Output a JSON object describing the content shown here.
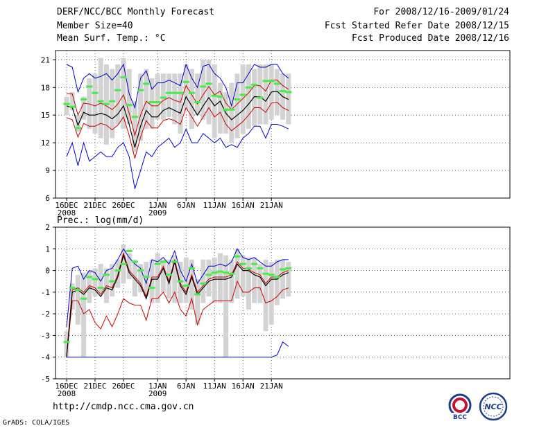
{
  "header": {
    "title": "DERF/NCC/BCC Monthly Forecast",
    "member_size": "Member Size=40",
    "variable1": "Mean Surf. Temp.: °C",
    "period": "For 2008/12/16-2009/01/24",
    "started": "Fcst Started Refer Date 2008/12/15",
    "produced": "Fcst Produced Date 2008/12/16"
  },
  "footer": {
    "url": "http://cmdp.ncc.cma.gov.cn",
    "grads": "GrADS: COLA/IGES",
    "logo1_text": "BCC",
    "logo2_text": "NCC"
  },
  "colors": {
    "bar": "#d3d3d3",
    "median": "#44ee44",
    "envelope": "#0000cc",
    "spread": "#cc0000",
    "mean": "#000000",
    "grid": "#000000"
  },
  "chart_data": [
    {
      "type": "line",
      "title": "Mean Surf. Temp.: °C",
      "x_day_index": [
        0,
        1,
        2,
        3,
        4,
        5,
        6,
        7,
        8,
        9,
        10,
        11,
        12,
        13,
        14,
        15,
        16,
        17,
        18,
        19,
        20,
        21,
        22,
        23,
        24,
        25,
        26,
        27,
        28,
        29,
        30,
        31,
        32,
        33,
        34,
        35,
        36,
        37,
        38,
        39
      ],
      "x_tick_labels": [
        {
          "label": "16DEC",
          "sub": "2008",
          "index": 0
        },
        {
          "label": "21DEC",
          "sub": "",
          "index": 5
        },
        {
          "label": "26DEC",
          "sub": "",
          "index": 10
        },
        {
          "label": "1JAN",
          "sub": "2009",
          "index": 16
        },
        {
          "label": "6JAN",
          "sub": "",
          "index": 21
        },
        {
          "label": "11JAN",
          "sub": "",
          "index": 26
        },
        {
          "label": "16JAN",
          "sub": "",
          "index": 31
        },
        {
          "label": "21JAN",
          "sub": "",
          "index": 36
        }
      ],
      "ylim": [
        6,
        22
      ],
      "yticks": [
        6,
        9,
        12,
        15,
        18,
        21
      ],
      "bars_low": [
        15.0,
        15.5,
        13.2,
        14.5,
        13.5,
        13.0,
        12.5,
        11.8,
        12.5,
        14.0,
        13.5,
        14.0,
        11.0,
        12.2,
        13.5,
        13.5,
        14.5,
        14.5,
        14.8,
        14.0,
        13.0,
        15.5,
        13.5,
        15.0,
        14.5,
        14.0,
        12.5,
        13.0,
        13.0,
        12.0,
        12.5,
        13.0,
        13.5,
        13.8,
        14.0,
        14.0,
        14.5,
        15.0,
        14.5,
        14.0
      ],
      "bars_high": [
        17.0,
        17.5,
        15.0,
        17.0,
        19.0,
        19.5,
        21.2,
        20.5,
        20.0,
        20.5,
        21.2,
        20.0,
        16.5,
        19.5,
        20.0,
        19.0,
        19.5,
        19.5,
        19.5,
        19.5,
        19.5,
        20.5,
        20.0,
        19.5,
        21.0,
        21.0,
        20.5,
        18.5,
        17.5,
        18.5,
        19.5,
        20.5,
        20.5,
        20.0,
        20.5,
        20.5,
        20.5,
        20.0,
        19.5,
        19.5
      ],
      "median": [
        16.2,
        15.9,
        13.6,
        16.7,
        18.1,
        17.4,
        16.5,
        16.2,
        16.5,
        17.7,
        19.1,
        16.1,
        14.8,
        17.7,
        18.4,
        16.4,
        16.4,
        16.9,
        17.4,
        17.4,
        17.4,
        18.6,
        17.4,
        16.4,
        18.1,
        18.4,
        17.1,
        17.0,
        15.6,
        15.6,
        16.7,
        17.2,
        18.0,
        18.3,
        16.9,
        18.7,
        18.7,
        18.4,
        17.6,
        17.5
      ],
      "mean": [
        16.0,
        15.8,
        13.9,
        15.3,
        15.0,
        15.0,
        15.2,
        15.0,
        14.6,
        15.1,
        16.0,
        14.0,
        11.5,
        13.8,
        15.5,
        14.8,
        14.8,
        15.5,
        15.8,
        15.5,
        15.2,
        17.0,
        16.0,
        15.0,
        16.0,
        16.9,
        16.0,
        16.5,
        15.2,
        14.5,
        15.0,
        15.5,
        16.2,
        17.0,
        17.0,
        16.5,
        17.5,
        17.6,
        17.0,
        16.7
      ],
      "spread_high": [
        17.3,
        17.3,
        15.0,
        16.3,
        16.2,
        16.0,
        16.3,
        16.0,
        15.6,
        16.2,
        17.2,
        15.2,
        12.8,
        15.0,
        16.5,
        16.0,
        16.0,
        16.6,
        16.9,
        16.6,
        16.4,
        18.2,
        17.2,
        16.2,
        17.2,
        18.1,
        17.2,
        17.6,
        16.3,
        15.6,
        16.2,
        16.8,
        17.4,
        18.2,
        18.2,
        17.6,
        18.8,
        18.8,
        18.2,
        17.8
      ],
      "spread_low": [
        14.7,
        14.5,
        12.6,
        14.1,
        13.8,
        13.8,
        14.1,
        13.9,
        13.4,
        13.9,
        14.8,
        12.8,
        10.3,
        12.6,
        14.4,
        13.6,
        13.6,
        14.4,
        14.6,
        14.4,
        14.0,
        15.8,
        14.8,
        13.8,
        14.8,
        15.8,
        14.8,
        15.3,
        14.0,
        13.3,
        13.8,
        14.3,
        15.0,
        15.8,
        15.8,
        15.3,
        16.3,
        16.4,
        15.8,
        15.5
      ],
      "env_high": [
        20.5,
        20.2,
        17.5,
        19.0,
        19.5,
        19.0,
        19.2,
        19.5,
        18.8,
        19.5,
        20.5,
        17.3,
        15.8,
        19.0,
        19.8,
        17.8,
        18.5,
        18.5,
        18.8,
        18.5,
        18.2,
        20.5,
        19.0,
        18.0,
        20.3,
        20.5,
        19.5,
        19.0,
        18.0,
        16.0,
        18.5,
        18.5,
        19.5,
        20.5,
        20.2,
        20.2,
        20.5,
        20.5,
        19.5,
        19.0
      ],
      "env_low": [
        10.5,
        12.0,
        9.5,
        12.0,
        10.0,
        10.5,
        11.0,
        10.5,
        10.5,
        11.5,
        12.0,
        10.5,
        7.0,
        9.0,
        11.0,
        10.5,
        11.5,
        12.0,
        12.5,
        11.5,
        12.0,
        13.5,
        12.0,
        12.0,
        13.0,
        12.5,
        12.0,
        12.5,
        11.5,
        11.8,
        11.5,
        12.5,
        13.0,
        13.8,
        13.8,
        12.5,
        14.0,
        14.0,
        13.8,
        13.5
      ]
    },
    {
      "type": "line",
      "title": "Prec.: log(mm/d)",
      "x_day_index": [
        0,
        1,
        2,
        3,
        4,
        5,
        6,
        7,
        8,
        9,
        10,
        11,
        12,
        13,
        14,
        15,
        16,
        17,
        18,
        19,
        20,
        21,
        22,
        23,
        24,
        25,
        26,
        27,
        28,
        29,
        30,
        31,
        32,
        33,
        34,
        35,
        36,
        37,
        38,
        39
      ],
      "x_tick_labels": [
        {
          "label": "16DEC",
          "sub": "2008",
          "index": 0
        },
        {
          "label": "21DEC",
          "sub": "",
          "index": 5
        },
        {
          "label": "26DEC",
          "sub": "",
          "index": 10
        },
        {
          "label": "1JAN",
          "sub": "2009",
          "index": 16
        },
        {
          "label": "6JAN",
          "sub": "",
          "index": 21
        },
        {
          "label": "11JAN",
          "sub": "",
          "index": 26
        },
        {
          "label": "16JAN",
          "sub": "",
          "index": 31
        },
        {
          "label": "21JAN",
          "sub": "",
          "index": 36
        }
      ],
      "ylim": [
        -5,
        2
      ],
      "yticks": [
        -5,
        -4,
        -3,
        -2,
        -1,
        0,
        1,
        2
      ],
      "bars_low": [
        -4.0,
        -1.8,
        -2.5,
        -4.0,
        -1.5,
        -1.2,
        -1.0,
        -1.5,
        -1.2,
        -0.8,
        -0.6,
        -0.4,
        -1.2,
        -1.0,
        -1.2,
        -1.5,
        -1.5,
        -1.0,
        -1.3,
        -1.5,
        -1.5,
        -1.5,
        -1.8,
        -2.5,
        -1.5,
        -1.2,
        -1.5,
        -1.5,
        -4.0,
        -1.5,
        -1.3,
        -1.2,
        -1.8,
        -1.5,
        -1.5,
        -2.8,
        -2.5,
        -1.6,
        -1.3,
        -1.2
      ],
      "bars_high": [
        -2.8,
        -0.6,
        -0.2,
        -0.1,
        0.0,
        0.1,
        0.3,
        0.1,
        0.3,
        0.5,
        1.2,
        0.8,
        0.5,
        0.3,
        0.4,
        0.5,
        0.8,
        0.5,
        0.5,
        0.7,
        0.4,
        0.6,
        0.5,
        -0.4,
        0.5,
        0.5,
        0.6,
        0.8,
        0.7,
        0.5,
        1.0,
        0.7,
        0.6,
        0.6,
        0.3,
        0.5,
        0.4,
        0.5,
        0.5,
        0.4
      ],
      "median": [
        -3.3,
        -0.8,
        -0.9,
        -1.3,
        -0.3,
        -0.4,
        -0.8,
        -0.2,
        -0.5,
        0.0,
        0.3,
        0.9,
        0.4,
        0.0,
        -0.3,
        -0.8,
        0.3,
        0.4,
        -0.2,
        0.4,
        -0.5,
        -0.7,
        0.1,
        -1.1,
        -0.6,
        -0.2,
        -0.1,
        -0.05,
        -0.1,
        -0.15,
        0.65,
        0.3,
        0.1,
        0.3,
        0.1,
        -0.15,
        -0.2,
        -0.3,
        0.05,
        0.1
      ],
      "mean": [
        -4.0,
        -1.0,
        -0.9,
        -1.1,
        -0.8,
        -0.9,
        -1.2,
        -0.8,
        -0.9,
        -0.3,
        0.7,
        -0.1,
        -0.4,
        -0.7,
        -1.3,
        -0.4,
        -0.4,
        0.1,
        -0.6,
        0.4,
        -0.7,
        -1.1,
        -0.3,
        -1.1,
        -0.8,
        -0.5,
        -0.4,
        -0.4,
        -0.4,
        -0.3,
        0.3,
        0.0,
        0.0,
        -0.2,
        -0.3,
        -0.7,
        -0.4,
        -0.4,
        -0.2,
        -0.1
      ],
      "spread_high": [
        -3.9,
        -0.9,
        -0.8,
        -1.0,
        -0.7,
        -0.8,
        -1.1,
        -0.7,
        -0.8,
        -0.2,
        0.8,
        0.0,
        -0.3,
        -0.6,
        -1.2,
        -0.3,
        -0.3,
        0.2,
        -0.5,
        0.5,
        -0.6,
        -1.0,
        -0.2,
        -1.0,
        -0.7,
        -0.4,
        -0.3,
        -0.3,
        -0.3,
        -0.2,
        0.4,
        0.1,
        0.05,
        -0.1,
        -0.2,
        -0.6,
        -0.3,
        -0.3,
        -0.1,
        0.0
      ],
      "spread_low": [
        -4.0,
        -1.4,
        -1.4,
        -2.0,
        -1.8,
        -2.4,
        -2.7,
        -2.1,
        -2.6,
        -2.0,
        -1.3,
        -1.5,
        -1.6,
        -1.6,
        -2.3,
        -1.3,
        -1.3,
        -1.0,
        -1.5,
        -1.0,
        -1.8,
        -2.1,
        -1.3,
        -2.5,
        -1.8,
        -1.6,
        -1.4,
        -1.4,
        -1.4,
        -1.4,
        -0.5,
        -1.0,
        -1.0,
        -0.8,
        -0.8,
        -1.5,
        -1.4,
        -1.2,
        -0.9,
        -0.8
      ],
      "env_high": [
        -2.6,
        0.1,
        0.2,
        -0.4,
        0.0,
        -0.1,
        -0.5,
        0.0,
        0.1,
        0.5,
        1.0,
        0.6,
        0.3,
        0.1,
        -0.6,
        0.5,
        0.4,
        0.6,
        0.3,
        0.9,
        0.0,
        -0.5,
        0.3,
        -0.6,
        -0.2,
        0.2,
        0.2,
        0.3,
        0.2,
        0.4,
        1.0,
        0.6,
        0.5,
        0.6,
        0.4,
        0.2,
        0.2,
        0.4,
        0.5,
        0.5
      ],
      "env_low": [
        -4.0,
        -4.0,
        -4.0,
        -4.0,
        -4.0,
        -4.0,
        -4.0,
        -4.0,
        -4.0,
        -4.0,
        -4.0,
        -4.0,
        -4.0,
        -4.0,
        -4.0,
        -4.0,
        -4.0,
        -4.0,
        -4.0,
        -4.0,
        -4.0,
        -4.0,
        -4.0,
        -4.0,
        -4.0,
        -4.0,
        -4.0,
        -4.0,
        -4.0,
        -4.0,
        -4.0,
        -4.0,
        -4.0,
        -4.0,
        -4.0,
        -4.0,
        -4.0,
        -3.9,
        -3.3,
        -3.5
      ]
    }
  ]
}
